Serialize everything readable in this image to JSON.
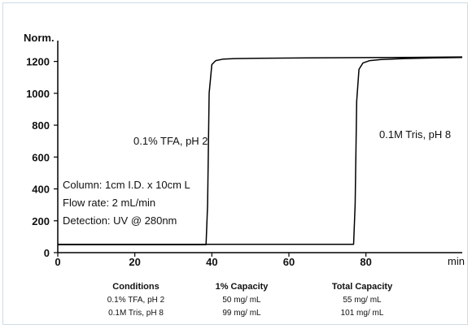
{
  "chart_data": {
    "type": "line",
    "ylabel": "Norm.",
    "xlabel": "min",
    "xlim": [
      0,
      105
    ],
    "ylim": [
      0,
      1300
    ],
    "xticks": [
      0,
      20,
      40,
      60,
      80
    ],
    "yticks": [
      0,
      200,
      400,
      600,
      800,
      1000,
      1200
    ],
    "line_color": "#000000",
    "series": [
      {
        "x": [
          0,
          38.5,
          38.9,
          39.3,
          40.0,
          41,
          43,
          46,
          52,
          65,
          80,
          95,
          105
        ],
        "y": [
          50,
          50,
          300,
          1000,
          1180,
          1205,
          1215,
          1218,
          1220,
          1222,
          1224,
          1226,
          1228
        ]
      },
      {
        "x": [
          0,
          76.8,
          77.2,
          77.6,
          78.2,
          79.2,
          81,
          84,
          90,
          98,
          105
        ],
        "y": [
          52,
          52,
          300,
          950,
          1150,
          1190,
          1205,
          1212,
          1218,
          1222,
          1225
        ]
      }
    ],
    "annotations": [
      "0.1% TFA, pH 2",
      "0.1M Tris, pH 8",
      "Column: 1cm I.D. x 10cm L",
      "Flow rate: 2 mL/min",
      "Detection: UV @ 280nm"
    ]
  },
  "table": {
    "headers": [
      "Conditions",
      "1% Capacity",
      "Total Capacity"
    ],
    "rows": [
      [
        "0.1% TFA, pH 2",
        "50 mg/ mL",
        "55 mg/ mL"
      ],
      [
        "0.1M Tris, pH 8",
        "99 mg/ mL",
        "101 mg/ mL"
      ]
    ]
  }
}
